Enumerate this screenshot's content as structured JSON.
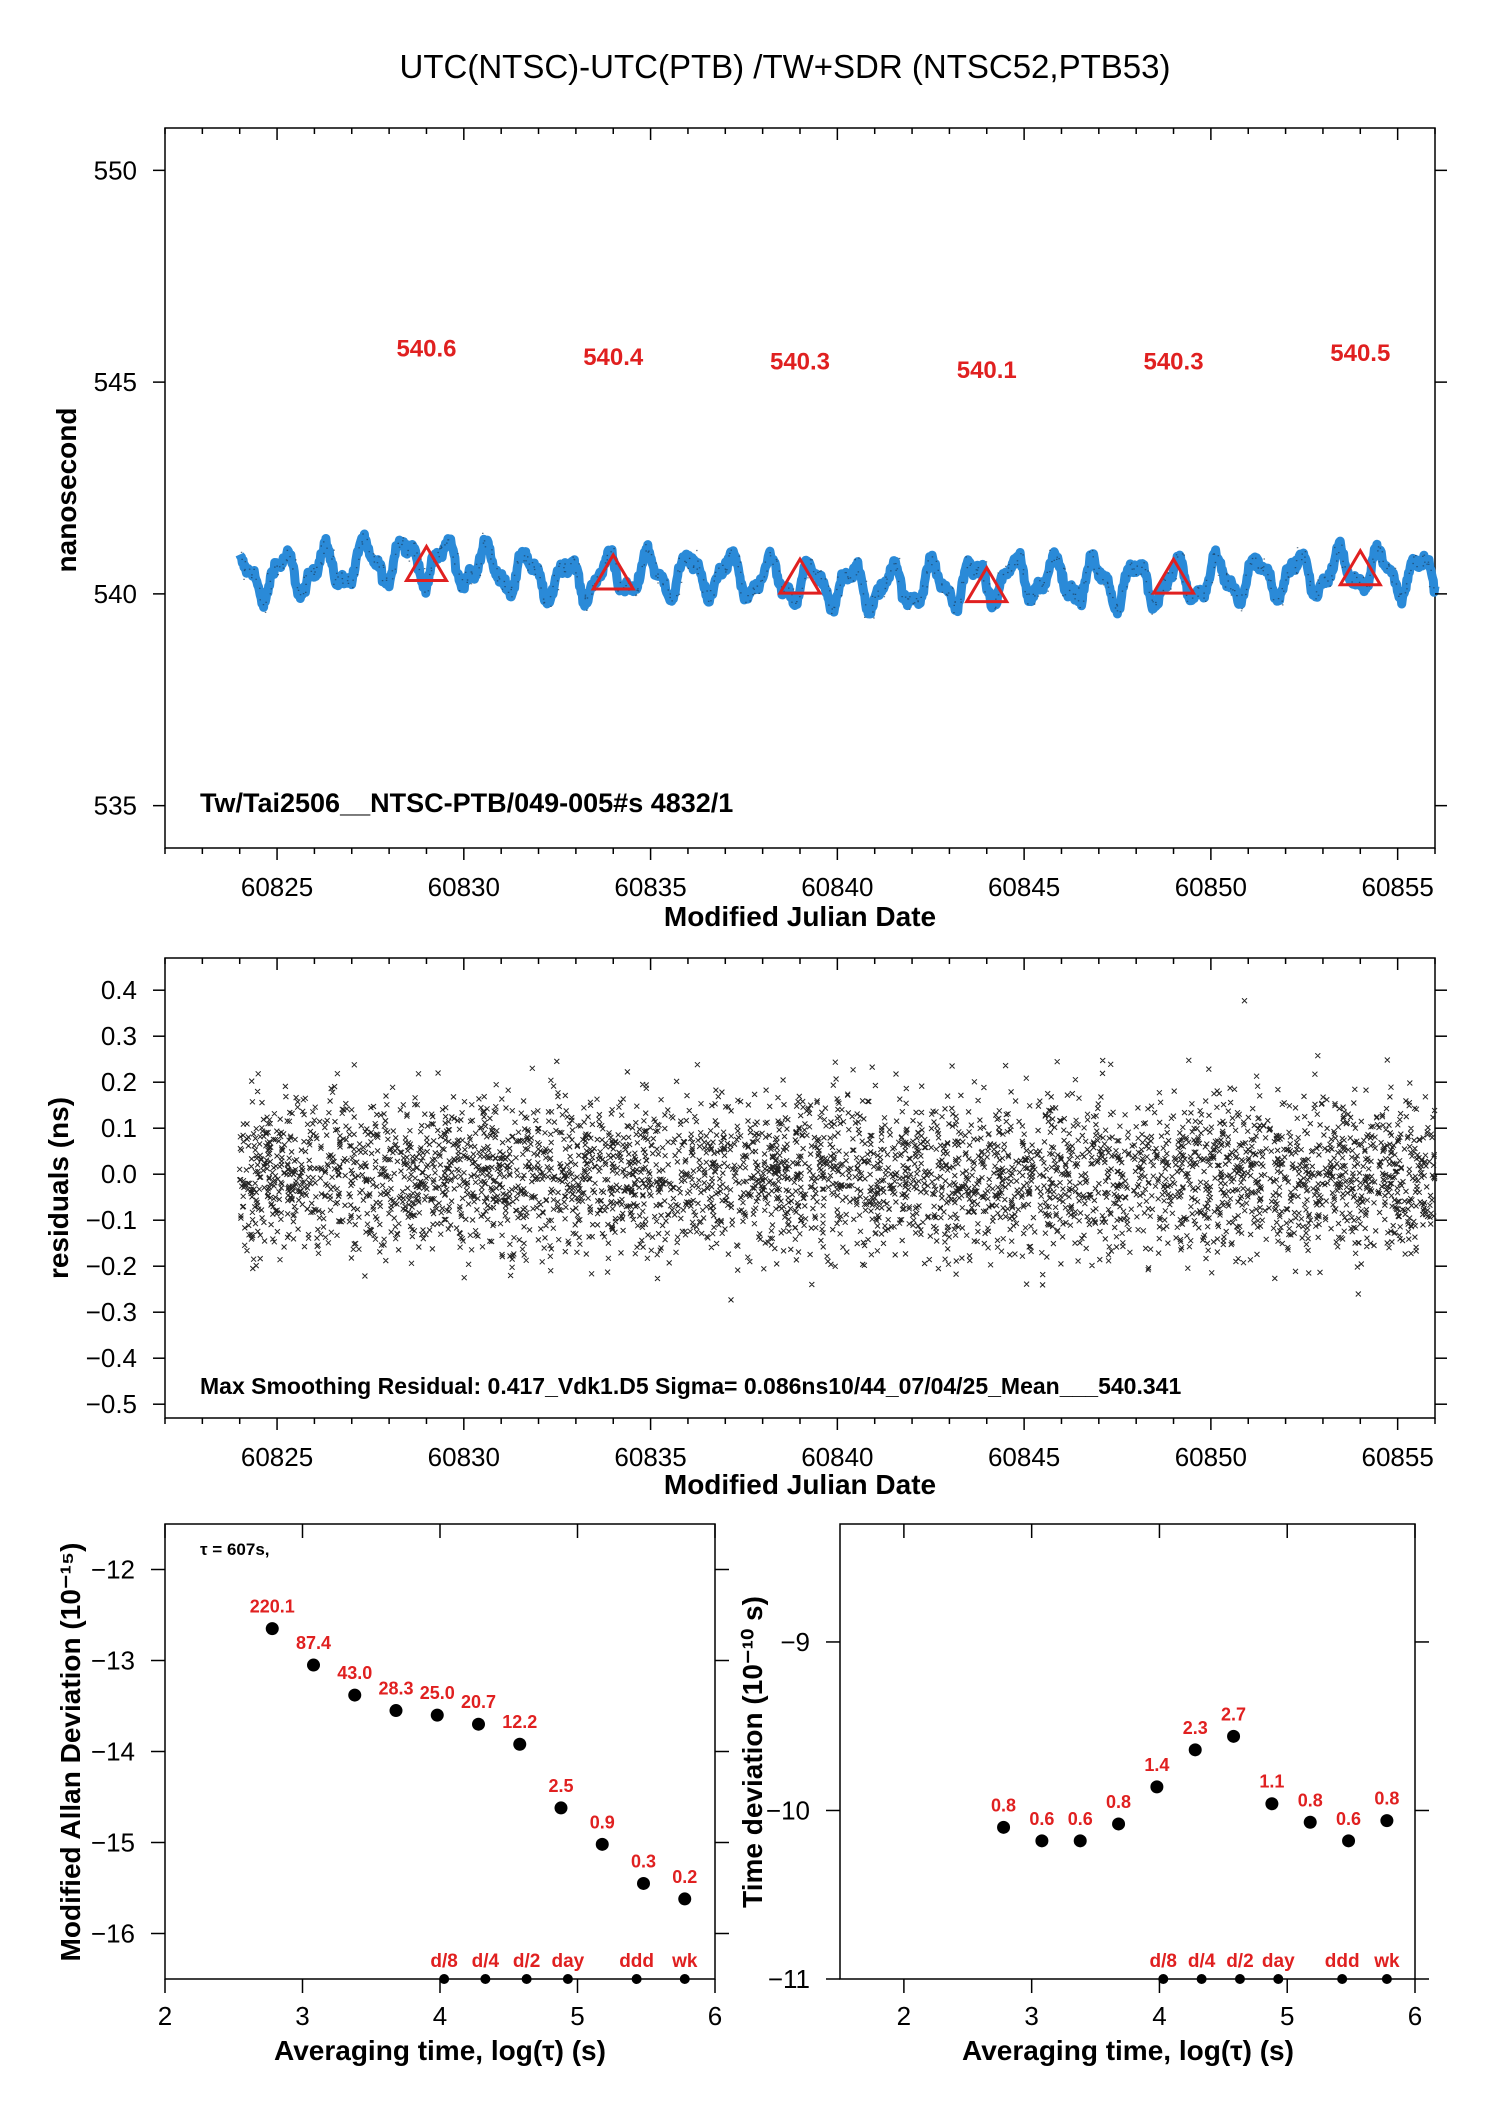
{
  "title": "UTC(NTSC)-UTC(PTB)  /TW+SDR  (NTSC52,PTB53)",
  "colors": {
    "series": "#2a8ad8",
    "marker": "#e02020",
    "ink": "#000000"
  },
  "chart_data": [
    {
      "type": "scatter",
      "name": "top",
      "xlabel": "Modified Julian Date",
      "ylabel": "nanosecond",
      "xlim": [
        60822,
        60856
      ],
      "ylim": [
        534,
        551
      ],
      "xticks": [
        60825,
        60830,
        60835,
        60840,
        60845,
        60850,
        60855
      ],
      "yticks": [
        535,
        540,
        545,
        550
      ],
      "series_color": "#2a8ad8",
      "data_range_x": [
        60824,
        60856
      ],
      "trace_anchor_y": [
        540.35,
        540.55,
        540.85,
        540.65,
        540.35,
        540.45,
        540.45,
        540.25,
        540.15,
        540.25,
        540.4,
        540.25,
        540.3,
        540.4,
        540.55,
        540.45
      ],
      "averages": [
        {
          "x": 60829,
          "y": 540.6,
          "label": "540.6"
        },
        {
          "x": 60834,
          "y": 540.4,
          "label": "540.4"
        },
        {
          "x": 60839,
          "y": 540.3,
          "label": "540.3"
        },
        {
          "x": 60844,
          "y": 540.1,
          "label": "540.1"
        },
        {
          "x": 60849,
          "y": 540.3,
          "label": "540.3"
        },
        {
          "x": 60854,
          "y": 540.5,
          "label": "540.5"
        }
      ],
      "annotation": "Tw/Tai2506__NTSC-PTB/049-005#s  4832/1"
    },
    {
      "type": "scatter",
      "name": "residuals",
      "xlabel": "Modified Julian Date",
      "ylabel": "residuals (ns)",
      "xlim": [
        60822,
        60856
      ],
      "ylim": [
        -0.53,
        0.47
      ],
      "xticks": [
        60825,
        60830,
        60835,
        60840,
        60845,
        60850,
        60855
      ],
      "yticks": [
        0.4,
        0.3,
        0.2,
        0.1,
        0.0,
        -0.1,
        -0.2,
        -0.3,
        -0.4,
        -0.5
      ],
      "ytick_labels": [
        "0.4",
        "0.3",
        "0.2",
        "0.1",
        "0.0",
        "−0.1",
        "−0.2",
        "−0.3",
        "−0.4",
        "−0.5"
      ],
      "sigma": 0.086,
      "max_residual": 0.417,
      "annotation": "Max Smoothing Residual: 0.417_Vdk1.D5  Sigma= 0.086ns10/44_07/04/25_Mean___540.341"
    },
    {
      "type": "scatter",
      "name": "mdev",
      "xlabel": "Averaging time, log(τ) (s)",
      "ylabel": "Modified Allan Deviation (10⁻¹⁵)",
      "xlim": [
        2,
        6
      ],
      "ylim": [
        -16.5,
        -11.5
      ],
      "xticks": [
        2,
        3,
        4,
        5,
        6
      ],
      "yticks": [
        -12,
        -13,
        -14,
        -15,
        -16
      ],
      "note": "τ = 607s,",
      "x": [
        2.78,
        3.08,
        3.38,
        3.68,
        3.98,
        4.28,
        4.58,
        4.88,
        5.18,
        5.48,
        5.78
      ],
      "y": [
        -12.65,
        -13.05,
        -13.38,
        -13.55,
        -13.6,
        -13.7,
        -13.92,
        -14.62,
        -15.02,
        -15.45,
        -15.62
      ],
      "labels": [
        "220.1",
        "87.4",
        "43.0",
        "28.3",
        "25.0",
        "20.7",
        "12.2",
        "2.5",
        "0.9",
        "0.3",
        "0.2"
      ],
      "markers_x": [
        4.03,
        4.33,
        4.63,
        4.93,
        5.43,
        5.78
      ],
      "markers_labels": [
        "d/8",
        "d/4",
        "d/2",
        "day",
        "ddd",
        "wk"
      ]
    },
    {
      "type": "scatter",
      "name": "tdev",
      "xlabel": "Averaging time, log(τ) (s)",
      "ylabel": "Time deviation (10⁻¹⁰ s)",
      "xlim": [
        1.5,
        6
      ],
      "ylim": [
        -11,
        -8.3
      ],
      "xticks": [
        2,
        3,
        4,
        5,
        6
      ],
      "yticks": [
        -9,
        -10,
        -11
      ],
      "x": [
        2.78,
        3.08,
        3.38,
        3.68,
        3.98,
        4.28,
        4.58,
        4.88,
        5.18,
        5.48,
        5.78
      ],
      "y": [
        -10.1,
        -10.18,
        -10.18,
        -10.08,
        -9.86,
        -9.64,
        -9.56,
        -9.96,
        -10.07,
        -10.18,
        -10.06
      ],
      "labels": [
        "0.8",
        "0.6",
        "0.6",
        "0.8",
        "1.4",
        "2.3",
        "2.7",
        "1.1",
        "0.8",
        "0.6",
        "0.8"
      ],
      "markers_x": [
        4.03,
        4.33,
        4.63,
        4.93,
        5.43,
        5.78
      ],
      "markers_labels": [
        "d/8",
        "d/4",
        "d/2",
        "day",
        "ddd",
        "wk"
      ]
    }
  ]
}
